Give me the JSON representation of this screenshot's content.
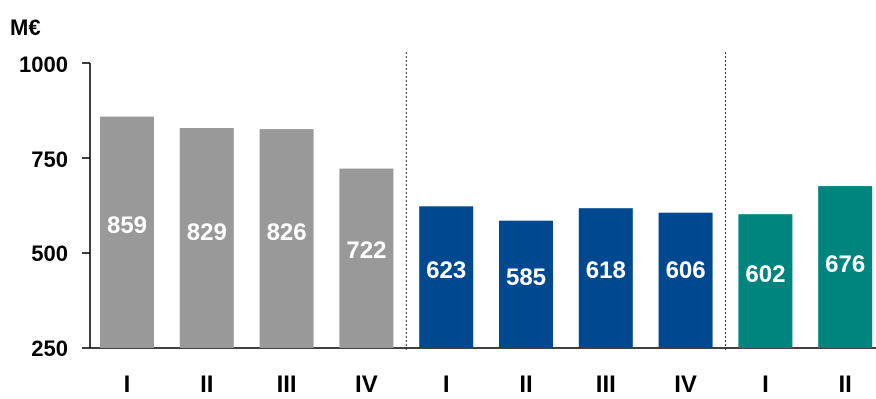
{
  "chart_data": {
    "type": "bar",
    "unit_label": "M€",
    "ylim": [
      250,
      1000
    ],
    "yticks": [
      "1000",
      "750",
      "500",
      "250"
    ],
    "categories": [
      "I",
      "II",
      "III",
      "IV",
      "I",
      "II",
      "III",
      "IV",
      "I",
      "II"
    ],
    "values": [
      859,
      829,
      826,
      722,
      623,
      585,
      618,
      606,
      602,
      676
    ],
    "value_labels": [
      "859",
      "829",
      "826",
      "722",
      "623",
      "585",
      "618",
      "606",
      "602",
      "676"
    ],
    "bar_colors": [
      "#999999",
      "#999999",
      "#999999",
      "#999999",
      "#004990",
      "#004990",
      "#004990",
      "#004990",
      "#00857e",
      "#00857e"
    ],
    "group_separators_after_index": [
      3,
      7
    ],
    "grid": false,
    "legend": "none"
  }
}
